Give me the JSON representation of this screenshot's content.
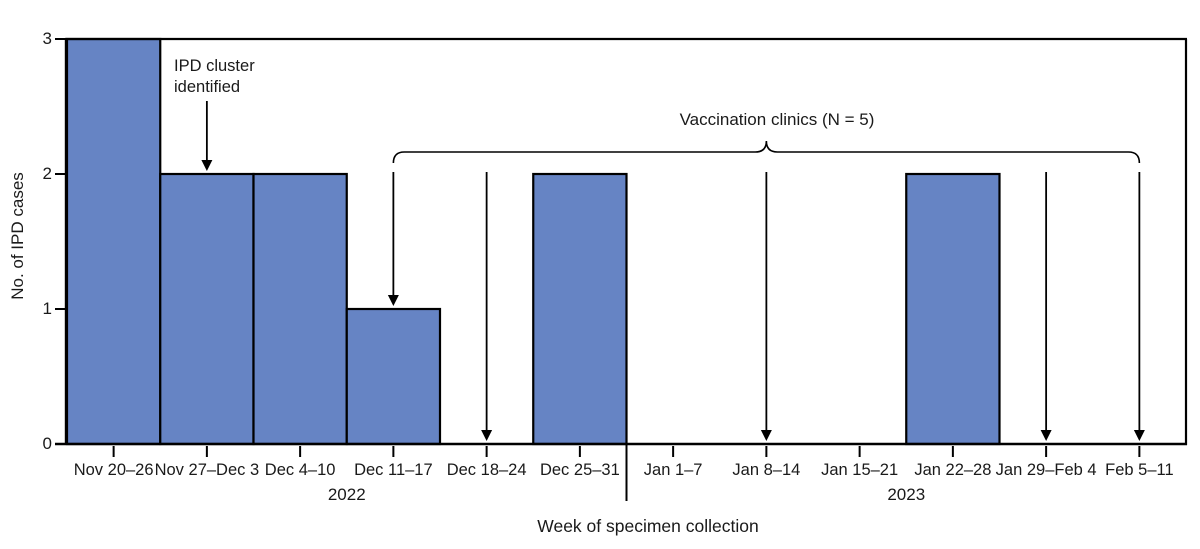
{
  "figure": {
    "background_color": "#ffffff",
    "bar_fill_color": "#6684C4",
    "line_color": "#000000",
    "text_color": "#1a1a1a"
  },
  "chart_data": {
    "type": "bar",
    "title": "",
    "xlabel": "Week of specimen collection",
    "ylabel": "No. of IPD cases",
    "categories": [
      "Nov 20–26",
      "Nov 27–Dec 3",
      "Dec 4–10",
      "Dec 11–17",
      "Dec 18–24",
      "Dec 25–31",
      "Jan 1–7",
      "Jan 8–14",
      "Jan 15–21",
      "Jan 22–28",
      "Jan 29–Feb 4",
      "Feb 5–11"
    ],
    "values": [
      3,
      2,
      2,
      1,
      0,
      2,
      0,
      0,
      0,
      2,
      0,
      0
    ],
    "ylim": [
      0,
      3
    ],
    "yticks": [
      0,
      1,
      2,
      3
    ],
    "grid": false,
    "legend_position": null,
    "year_labels": [
      {
        "label": "2022",
        "start_index": 0,
        "end_index": 5
      },
      {
        "label": "2023",
        "start_index": 6,
        "end_index": 11
      }
    ],
    "year_divider_after_index": 5,
    "annotations": {
      "cluster": {
        "line1": "IPD cluster",
        "line2": "identified",
        "arrow_category": "Nov 27–Dec 3",
        "arrow_category_index": 1,
        "arrow_tip_value": 2
      },
      "vaccination": {
        "label": "Vaccination clinics (N = 5)",
        "clinic_count": 5,
        "brace_start_category_index": 3,
        "brace_end_category_index": 11,
        "arrows": [
          {
            "category": "Dec 11–17",
            "category_index": 3,
            "tip_value": 1
          },
          {
            "category": "Dec 18–24",
            "category_index": 4,
            "tip_value": 0
          },
          {
            "category": "Jan 8–14",
            "category_index": 7,
            "tip_value": 0
          },
          {
            "category": "Jan 29–Feb 4",
            "category_index": 10,
            "tip_value": 0
          },
          {
            "category": "Feb 5–11",
            "category_index": 11,
            "tip_value": 0
          }
        ]
      }
    }
  }
}
